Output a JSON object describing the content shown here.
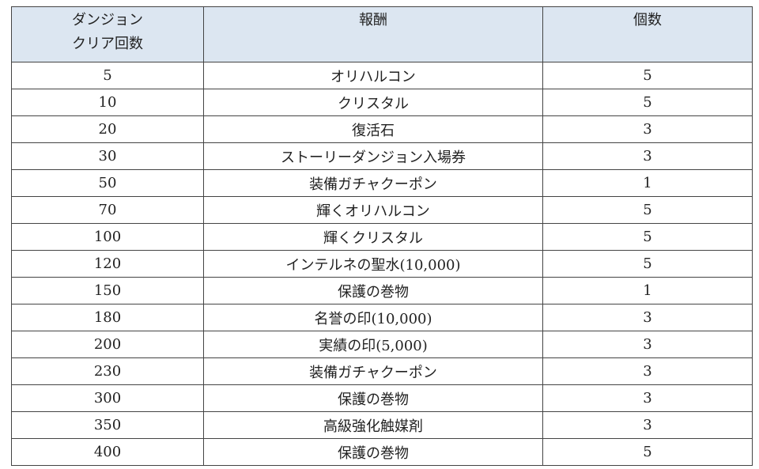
{
  "table": {
    "headers": [
      "ダンジョン\nクリア回数",
      "報酬",
      "個数"
    ],
    "header_lines": [
      "ダンジョン",
      "クリア回数"
    ],
    "header_bg": "#dce6f1",
    "rows": [
      [
        "5",
        "オリハルコン",
        "5"
      ],
      [
        "10",
        "クリスタル",
        "5"
      ],
      [
        "20",
        "復活石",
        "3"
      ],
      [
        "30",
        "ストーリーダンジョン入場券",
        "3"
      ],
      [
        "50",
        "装備ガチャクーポン",
        "1"
      ],
      [
        "70",
        "輝くオリハルコン",
        "5"
      ],
      [
        "100",
        "輝くクリスタル",
        "5"
      ],
      [
        "120",
        "インテルネの聖水(10,000)",
        "5"
      ],
      [
        "150",
        "保護の巻物",
        "1"
      ],
      [
        "180",
        "名誉の印(10,000)",
        "3"
      ],
      [
        "200",
        "実績の印(5,000)",
        "3"
      ],
      [
        "230",
        "装備ガチャクーポン",
        "3"
      ],
      [
        "300",
        "保護の巻物",
        "3"
      ],
      [
        "350",
        "高級強化触媒剤",
        "3"
      ],
      [
        "400",
        "保護の巻物",
        "5"
      ]
    ]
  }
}
